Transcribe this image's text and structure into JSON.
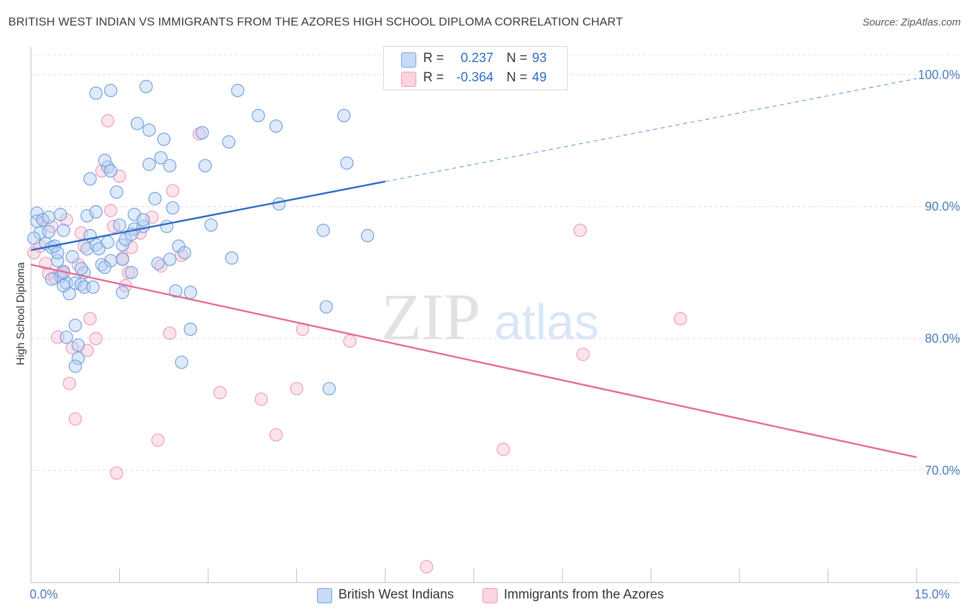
{
  "header": {
    "title": "BRITISH WEST INDIAN VS IMMIGRANTS FROM THE AZORES HIGH SCHOOL DIPLOMA CORRELATION CHART",
    "source": "Source: ZipAtlas.com"
  },
  "legend": {
    "rows": [
      {
        "r_label": "R =",
        "r_value": "0.237",
        "n_label": "N =",
        "n_value": "93",
        "color": "#6fa0e0"
      },
      {
        "r_label": "R =",
        "r_value": "-0.364",
        "n_label": "N =",
        "n_value": "49",
        "color": "#f09ab8"
      }
    ]
  },
  "watermark": {
    "zip": "ZIP",
    "atlas": "atlas"
  },
  "axis": {
    "ytitle": "High School Diploma",
    "x_min_label": "0.0%",
    "x_max_label": "15.0%",
    "y_ticks": [
      "100.0%",
      "90.0%",
      "80.0%",
      "70.0%"
    ]
  },
  "bottom_legend": {
    "series1": "British West Indians",
    "series2": "Immigrants from the Azores"
  },
  "chart_data": {
    "type": "scatter",
    "title": "BRITISH WEST INDIAN VS IMMIGRANTS FROM THE AZORES HIGH SCHOOL DIPLOMA CORRELATION CHART",
    "xlabel": "",
    "ylabel": "High School Diploma",
    "xlim": [
      0,
      15
    ],
    "ylim": [
      61.5,
      102
    ],
    "y_ticks": [
      70,
      80,
      90,
      100
    ],
    "grid": true,
    "legend_position": "top-center",
    "series": [
      {
        "name": "British West Indians",
        "color": "#6fa0e0",
        "R": 0.237,
        "N": 93,
        "trend": {
          "x0": 0,
          "y0": 86.7,
          "x1": 15,
          "y1": 99.7,
          "solid_until_x": 6.0
        },
        "points": [
          [
            0.1,
            89.5
          ],
          [
            0.1,
            88.9
          ],
          [
            0.15,
            88.0
          ],
          [
            0.2,
            89.0
          ],
          [
            0.25,
            87.2
          ],
          [
            0.3,
            88.1
          ],
          [
            0.35,
            86.9
          ],
          [
            0.4,
            87.0
          ],
          [
            0.45,
            85.9
          ],
          [
            0.5,
            89.4
          ],
          [
            0.5,
            84.7
          ],
          [
            0.55,
            88.2
          ],
          [
            0.6,
            84.2
          ],
          [
            0.55,
            85.0
          ],
          [
            0.65,
            83.4
          ],
          [
            0.55,
            84.0
          ],
          [
            0.7,
            86.2
          ],
          [
            0.75,
            84.2
          ],
          [
            0.75,
            81.0
          ],
          [
            0.6,
            80.1
          ],
          [
            0.85,
            84.1
          ],
          [
            0.8,
            79.5
          ],
          [
            0.8,
            78.5
          ],
          [
            0.75,
            77.9
          ],
          [
            0.9,
            83.9
          ],
          [
            0.9,
            85.0
          ],
          [
            0.95,
            86.8
          ],
          [
            0.95,
            89.3
          ],
          [
            1.0,
            92.1
          ],
          [
            1.0,
            87.8
          ],
          [
            1.1,
            89.6
          ],
          [
            1.1,
            87.1
          ],
          [
            1.2,
            85.6
          ],
          [
            1.15,
            86.8
          ],
          [
            1.3,
            87.3
          ],
          [
            1.35,
            85.9
          ],
          [
            1.3,
            93.0
          ],
          [
            1.25,
            93.5
          ],
          [
            1.35,
            92.7
          ],
          [
            1.45,
            91.1
          ],
          [
            1.55,
            83.5
          ],
          [
            1.55,
            87.1
          ],
          [
            1.6,
            87.5
          ],
          [
            1.7,
            85.0
          ],
          [
            1.75,
            88.3
          ],
          [
            1.75,
            89.4
          ],
          [
            1.9,
            88.5
          ],
          [
            1.55,
            86.0
          ],
          [
            1.5,
            88.6
          ],
          [
            1.1,
            98.6
          ],
          [
            1.35,
            98.8
          ],
          [
            1.8,
            96.3
          ],
          [
            1.95,
            99.1
          ],
          [
            2.0,
            95.8
          ],
          [
            2.0,
            93.2
          ],
          [
            2.1,
            90.6
          ],
          [
            2.15,
            85.7
          ],
          [
            2.2,
            93.7
          ],
          [
            2.25,
            95.1
          ],
          [
            2.3,
            88.5
          ],
          [
            2.35,
            86.0
          ],
          [
            2.35,
            93.1
          ],
          [
            2.4,
            89.9
          ],
          [
            2.45,
            83.6
          ],
          [
            2.5,
            87.0
          ],
          [
            2.55,
            78.2
          ],
          [
            2.7,
            80.7
          ],
          [
            2.7,
            83.5
          ],
          [
            2.9,
            95.6
          ],
          [
            2.95,
            93.1
          ],
          [
            3.05,
            88.6
          ],
          [
            3.35,
            94.9
          ],
          [
            3.4,
            86.1
          ],
          [
            3.5,
            98.8
          ],
          [
            3.85,
            96.9
          ],
          [
            4.15,
            96.1
          ],
          [
            4.2,
            90.2
          ],
          [
            4.95,
            88.2
          ],
          [
            5.0,
            82.4
          ],
          [
            5.05,
            76.2
          ],
          [
            5.3,
            96.9
          ],
          [
            5.35,
            93.3
          ],
          [
            5.7,
            87.8
          ],
          [
            0.3,
            89.2
          ],
          [
            0.05,
            87.6
          ],
          [
            0.45,
            86.5
          ],
          [
            0.85,
            85.3
          ],
          [
            1.05,
            83.9
          ],
          [
            1.25,
            85.4
          ],
          [
            1.7,
            87.9
          ],
          [
            1.9,
            89.0
          ],
          [
            2.6,
            86.5
          ],
          [
            0.35,
            84.5
          ]
        ]
      },
      {
        "name": "Immigrants from the Azores",
        "color": "#f09ab8",
        "R": -0.364,
        "N": 49,
        "trend": {
          "x0": 0,
          "y0": 85.6,
          "x1": 15,
          "y1": 71.0,
          "solid_until_x": 15.0
        },
        "points": [
          [
            0.05,
            86.5
          ],
          [
            0.2,
            89.0
          ],
          [
            0.25,
            85.7
          ],
          [
            0.3,
            84.9
          ],
          [
            0.35,
            88.5
          ],
          [
            0.4,
            84.6
          ],
          [
            0.45,
            80.1
          ],
          [
            0.5,
            84.9
          ],
          [
            0.55,
            85.1
          ],
          [
            0.6,
            89.0
          ],
          [
            0.65,
            76.6
          ],
          [
            0.7,
            79.3
          ],
          [
            0.75,
            73.9
          ],
          [
            0.8,
            85.6
          ],
          [
            0.85,
            88.0
          ],
          [
            0.9,
            87.0
          ],
          [
            0.95,
            79.1
          ],
          [
            1.0,
            81.5
          ],
          [
            1.1,
            80.0
          ],
          [
            1.2,
            92.7
          ],
          [
            1.3,
            96.5
          ],
          [
            1.35,
            89.7
          ],
          [
            1.4,
            88.5
          ],
          [
            1.45,
            69.8
          ],
          [
            1.5,
            92.3
          ],
          [
            1.55,
            86.1
          ],
          [
            1.6,
            84.0
          ],
          [
            1.65,
            85.0
          ],
          [
            1.7,
            86.9
          ],
          [
            1.85,
            88.0
          ],
          [
            2.05,
            89.2
          ],
          [
            2.15,
            72.3
          ],
          [
            2.2,
            85.5
          ],
          [
            2.35,
            80.4
          ],
          [
            2.4,
            91.2
          ],
          [
            2.55,
            86.3
          ],
          [
            2.85,
            95.5
          ],
          [
            3.2,
            75.9
          ],
          [
            3.9,
            75.4
          ],
          [
            4.15,
            72.7
          ],
          [
            4.5,
            76.2
          ],
          [
            4.6,
            80.7
          ],
          [
            5.4,
            79.8
          ],
          [
            6.7,
            62.7
          ],
          [
            8.0,
            71.6
          ],
          [
            9.3,
            88.2
          ],
          [
            9.35,
            78.8
          ],
          [
            11.0,
            81.5
          ],
          [
            0.15,
            87.0
          ]
        ]
      }
    ]
  }
}
